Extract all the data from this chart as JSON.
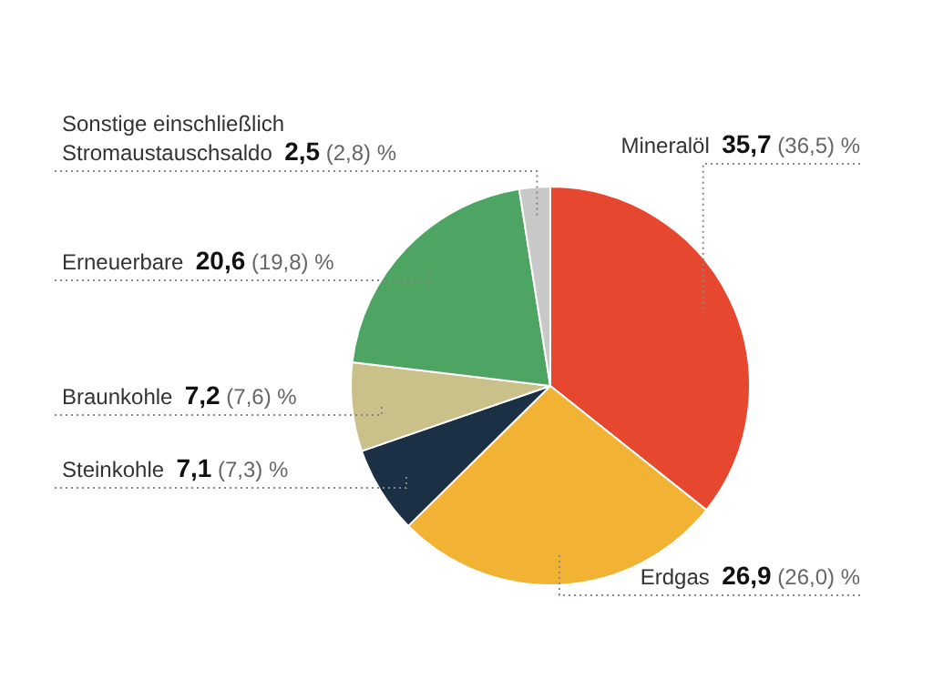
{
  "chart_data": {
    "type": "pie",
    "categories": [
      "Mineralöl",
      "Erdgas",
      "Steinkohle",
      "Braunkohle",
      "Erneuerbare",
      "Sonstige einschließlich\nStromaustauschsaldo"
    ],
    "values": [
      35.7,
      26.9,
      7.1,
      7.2,
      20.6,
      2.5
    ],
    "colors": [
      "#e5482f",
      "#f2b233",
      "#1b2f45",
      "#c9c08a",
      "#4da463",
      "#c8c8c8"
    ],
    "value_labels": [
      "35,7 (36,5) %",
      "26,9 (26,0) %",
      "7,1 (7,3) %",
      "7,2 (7,6) %",
      "20,6 (19,8) %",
      "2,5 (2,8) %"
    ],
    "legend": false
  }
}
